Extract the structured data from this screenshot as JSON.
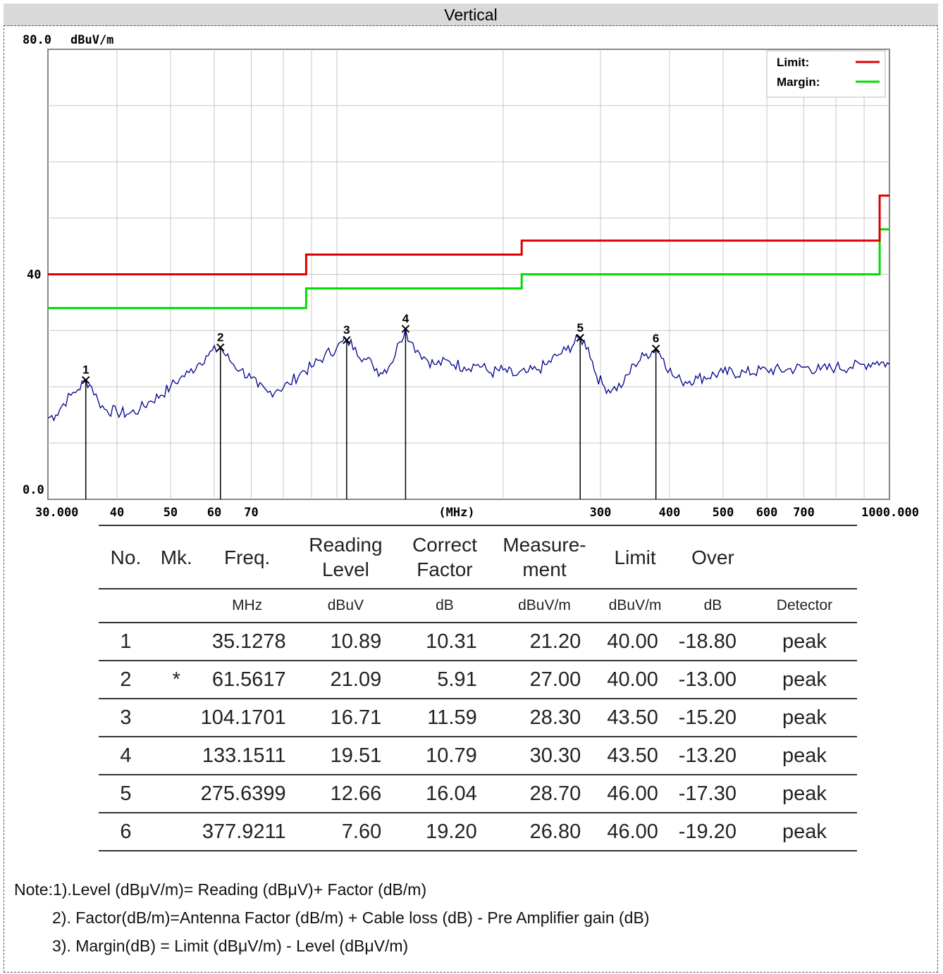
{
  "title": "Vertical",
  "chart_data": {
    "type": "line",
    "y_unit": "dBuV/m",
    "x_unit": "(MHz)",
    "x_scale": "log",
    "xlim": [
      30,
      1000
    ],
    "ylim": [
      0,
      80
    ],
    "y_tick_labels": [
      "80.0",
      "40",
      "0.0"
    ],
    "x_tick_labels": [
      {
        "value": 30,
        "label": "30.000"
      },
      {
        "value": 40,
        "label": "40"
      },
      {
        "value": 50,
        "label": "50"
      },
      {
        "value": 60,
        "label": "60"
      },
      {
        "value": 70,
        "label": "70"
      },
      {
        "value": 300,
        "label": "300"
      },
      {
        "value": 400,
        "label": "400"
      },
      {
        "value": 500,
        "label": "500"
      },
      {
        "value": 600,
        "label": "600"
      },
      {
        "value": 700,
        "label": "700"
      },
      {
        "value": 1000,
        "label": "1000.000"
      }
    ],
    "grid": true,
    "legend": [
      {
        "name": "Limit:",
        "color": "#dd0000"
      },
      {
        "name": "Margin:",
        "color": "#00dd00"
      }
    ],
    "limit_line": {
      "color": "#dd0000",
      "points": [
        [
          30,
          40
        ],
        [
          88,
          40
        ],
        [
          88,
          43.5
        ],
        [
          216,
          43.5
        ],
        [
          216,
          46
        ],
        [
          960,
          46
        ],
        [
          960,
          54
        ],
        [
          1000,
          54
        ]
      ]
    },
    "margin_line": {
      "color": "#00dd00",
      "points": [
        [
          30,
          34
        ],
        [
          88,
          34
        ],
        [
          88,
          37.5
        ],
        [
          216,
          37.5
        ],
        [
          216,
          40
        ],
        [
          960,
          40
        ],
        [
          960,
          48
        ],
        [
          1000,
          48
        ]
      ]
    },
    "trace": {
      "color": "#00008b",
      "points": [
        [
          30,
          14.5
        ],
        [
          31,
          15
        ],
        [
          32,
          17
        ],
        [
          33,
          18.5
        ],
        [
          34,
          19.5
        ],
        [
          35.13,
          21.2
        ],
        [
          36,
          20
        ],
        [
          37,
          17.5
        ],
        [
          38,
          16
        ],
        [
          40,
          15.5
        ],
        [
          42,
          15.2
        ],
        [
          44,
          16
        ],
        [
          46,
          17.5
        ],
        [
          48,
          18.5
        ],
        [
          50,
          20
        ],
        [
          52,
          21.5
        ],
        [
          54,
          22.5
        ],
        [
          56,
          24
        ],
        [
          58,
          25.5
        ],
        [
          61.56,
          27
        ],
        [
          63,
          25.5
        ],
        [
          65,
          24
        ],
        [
          67,
          23
        ],
        [
          70,
          21.5
        ],
        [
          72,
          20
        ],
        [
          75,
          19
        ],
        [
          78,
          19.5
        ],
        [
          82,
          20.5
        ],
        [
          86,
          22.5
        ],
        [
          90,
          23.5
        ],
        [
          95,
          25.5
        ],
        [
          100,
          27
        ],
        [
          104.17,
          28.3
        ],
        [
          108,
          27
        ],
        [
          112,
          25
        ],
        [
          116,
          24
        ],
        [
          120,
          22.5
        ],
        [
          125,
          24
        ],
        [
          130,
          28
        ],
        [
          133.15,
          30.3
        ],
        [
          136,
          28
        ],
        [
          140,
          26.5
        ],
        [
          145,
          25
        ],
        [
          150,
          24
        ],
        [
          160,
          24.5
        ],
        [
          170,
          23.5
        ],
        [
          180,
          24
        ],
        [
          190,
          22.5
        ],
        [
          200,
          23
        ],
        [
          210,
          22
        ],
        [
          220,
          22.5
        ],
        [
          230,
          23
        ],
        [
          240,
          24
        ],
        [
          250,
          25.5
        ],
        [
          260,
          26.5
        ],
        [
          275.64,
          28.7
        ],
        [
          285,
          27
        ],
        [
          295,
          22
        ],
        [
          305,
          20
        ],
        [
          315,
          19.5
        ],
        [
          330,
          20.5
        ],
        [
          345,
          24
        ],
        [
          360,
          25.5
        ],
        [
          377.92,
          26.8
        ],
        [
          390,
          25
        ],
        [
          405,
          22
        ],
        [
          420,
          21
        ],
        [
          450,
          21.5
        ],
        [
          500,
          22.5
        ],
        [
          550,
          22.5
        ],
        [
          600,
          23
        ],
        [
          650,
          23
        ],
        [
          700,
          23.5
        ],
        [
          750,
          23
        ],
        [
          800,
          23.5
        ],
        [
          850,
          23.5
        ],
        [
          900,
          24
        ],
        [
          950,
          24.5
        ],
        [
          1000,
          24
        ]
      ]
    },
    "markers": [
      {
        "label": "1",
        "x": 35.1278,
        "y": 21.2
      },
      {
        "label": "2",
        "x": 61.5617,
        "y": 27.0
      },
      {
        "label": "3",
        "x": 104.1701,
        "y": 28.3
      },
      {
        "label": "4",
        "x": 133.1511,
        "y": 30.3
      },
      {
        "label": "5",
        "x": 275.6399,
        "y": 28.7
      },
      {
        "label": "6",
        "x": 377.9211,
        "y": 26.8
      }
    ]
  },
  "table": {
    "headers": [
      "No.",
      "Mk.",
      "Freq.",
      "Reading\nLevel",
      "Correct\nFactor",
      "Measure-\nment",
      "Limit",
      "Over",
      ""
    ],
    "units": [
      "",
      "",
      "MHz",
      "dBuV",
      "dB",
      "dBuV/m",
      "dBuV/m",
      "dB",
      "Detector"
    ],
    "rows": [
      [
        "1",
        "",
        "35.1278",
        "10.89",
        "10.31",
        "21.20",
        "40.00",
        "-18.80",
        "peak"
      ],
      [
        "2",
        "*",
        "61.5617",
        "21.09",
        "5.91",
        "27.00",
        "40.00",
        "-13.00",
        "peak"
      ],
      [
        "3",
        "",
        "104.1701",
        "16.71",
        "11.59",
        "28.30",
        "43.50",
        "-15.20",
        "peak"
      ],
      [
        "4",
        "",
        "133.1511",
        "19.51",
        "10.79",
        "30.30",
        "43.50",
        "-13.20",
        "peak"
      ],
      [
        "5",
        "",
        "275.6399",
        "12.66",
        "16.04",
        "28.70",
        "46.00",
        "-17.30",
        "peak"
      ],
      [
        "6",
        "",
        "377.9211",
        "7.60",
        "19.20",
        "26.80",
        "46.00",
        "-19.20",
        "peak"
      ]
    ]
  },
  "notes": [
    "Note:1).Level (dBμV/m)= Reading (dBμV)+ Factor (dB/m)",
    "2). Factor(dB/m)=Antenna Factor (dB/m) + Cable loss (dB) - Pre Amplifier gain (dB)",
    "3). Margin(dB) = Limit (dBμV/m) - Level (dBμV/m)"
  ]
}
